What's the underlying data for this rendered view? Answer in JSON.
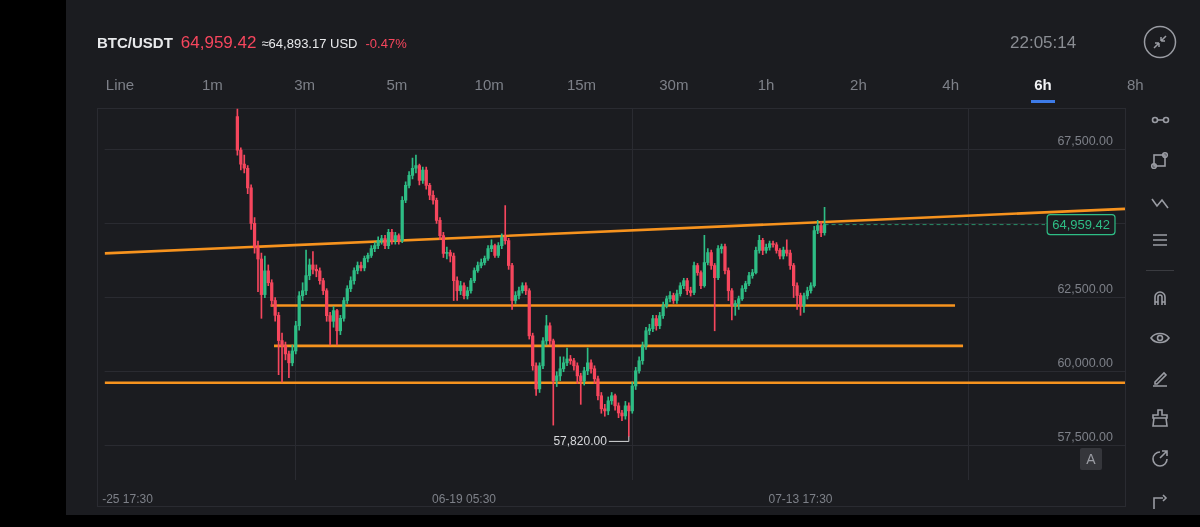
{
  "chart_data": {
    "type": "candlestick",
    "title": "BTC/USDT",
    "annotations": [
      "64,959.42",
      "≈64,893.17 USD",
      "-0.47%",
      "22:05:14",
      "Line",
      "1m",
      "3m",
      "5m",
      "10m",
      "15m",
      "30m",
      "1h",
      "2h",
      "4h",
      "6h",
      "8h",
      "A",
      {
        "text": "57,820.00",
        "x": "--07-01T05:30",
        "y": 57820
      }
    ],
    "colors": [
      "#f6465d",
      "#f6465d",
      "#f6465d",
      "#f6465d",
      "#f6465d",
      "#f6465d",
      "#f6465d",
      "#f6465d",
      "#2ebd85",
      "#f6465d",
      "#f6465d",
      "#f6465d",
      "#f6465d",
      "#f6465d",
      "#f6465d",
      "#f6465d",
      "#2ebd85",
      "#2ebd85",
      "#2ebd85",
      "#2ebd85",
      "#2ebd85",
      "#2ebd85",
      "#f6465d",
      "#f6465d",
      "#f6465d",
      "#f6465d",
      "#f6465d",
      "#f6465d",
      "#2ebd85",
      "#f6465d",
      "#2ebd85",
      "#2ebd85",
      "#2ebd85",
      "#2ebd85",
      "#2ebd85",
      "#2ebd85",
      "#f6465d",
      "#2ebd85",
      "#2ebd85",
      "#2ebd85",
      "#2ebd85",
      "#2ebd85",
      "#2ebd85",
      "#f6465d",
      "#2ebd85",
      "#f6465d",
      "#2ebd85",
      "#f6465d",
      "#2ebd85",
      "#2ebd85",
      "#2ebd85",
      "#2ebd85",
      "#2ebd85",
      "#f6465d",
      "#2ebd85",
      "#f6465d",
      "#f6465d",
      "#f6465d",
      "#f6465d",
      "#f6465d",
      "#f6465d",
      "#2ebd85",
      "#f6465d",
      "#f6465d",
      "#f6465d",
      "#2ebd85",
      "#f6465d",
      "#2ebd85",
      "#2ebd85",
      "#2ebd85",
      "#2ebd85",
      "#2ebd85",
      "#2ebd85",
      "#2ebd85",
      "#2ebd85",
      "#f6465d",
      "#2ebd85",
      "#2ebd85",
      "#f6465d",
      "#f6465d",
      "#f6465d",
      "#2ebd85",
      "#2ebd85",
      "#2ebd85",
      "#f6465d",
      "#f6465d",
      "#f6465d",
      "#f6465d",
      "#2ebd85",
      "#2ebd85",
      "#2ebd85",
      "#f6465d",
      "#f6465d",
      "#2ebd85",
      "#2ebd85",
      "#2ebd85",
      "#2ebd85",
      "#f6465d",
      "#f6465d",
      "#f6465d",
      "#f6465d",
      "#2ebd85",
      "#2ebd85",
      "#f6465d",
      "#f6465d",
      "#f6465d",
      "#f6465d",
      "#f6465d",
      "#2ebd85",
      "#2ebd85",
      "#f6465d",
      "#f6465d",
      "#f6465d",
      "#2ebd85",
      "#f6465d",
      "#2ebd85",
      "#2ebd85",
      "#2ebd85",
      "#2ebd85",
      "#2ebd85",
      "#2ebd85",
      "#2ebd85",
      "#f6465d",
      "#2ebd85",
      "#2ebd85",
      "#2ebd85",
      "#2ebd85",
      "#f6465d",
      "#2ebd85",
      "#2ebd85",
      "#2ebd85",
      "#f6465d",
      "#f6465d",
      "#2ebd85",
      "#f6465d",
      "#f6465d",
      "#2ebd85",
      "#2ebd85",
      "#f6465d",
      "#f6465d",
      "#2ebd85",
      "#2ebd85",
      "#f6465d",
      "#f6465d",
      "#f6465d",
      "#2ebd85",
      "#2ebd85",
      "#2ebd85",
      "#2ebd85",
      "#2ebd85",
      "#2ebd85",
      "#2ebd85",
      "#2ebd85",
      "#f6465d",
      "#2ebd85",
      "#2ebd85",
      "#f6465d",
      "#f6465d",
      "#f6465d",
      "#2ebd85",
      "#f6465d",
      "#f6465d",
      "#f6465d",
      "#f6465d",
      "#f6465d",
      "#2ebd85",
      "#2ebd85",
      "#2ebd85",
      "#2ebd85",
      "#2ebd85",
      "#f6465d",
      "#2ebd85"
    ],
    "x": [
      "--06-02T17:30",
      "--06-02T23:30",
      "--06-03T05:30",
      "--06-03T11:30",
      "--06-03T17:30",
      "--06-03T23:30",
      "--06-04T05:30",
      "--06-04T11:30",
      "--06-04T17:30",
      "--06-04T23:30",
      "--06-05T05:30",
      "--06-05T11:30",
      "--06-05T17:30",
      "--06-05T23:30",
      "--06-06T05:30",
      "--06-06T11:30",
      "--06-06T17:30",
      "--06-06T23:30",
      "--06-07T05:30",
      "--06-07T11:30",
      "--06-07T17:30",
      "--06-07T23:30",
      "--06-08T05:30",
      "--06-08T11:30",
      "--06-08T17:30",
      "--06-08T23:30",
      "--06-09T05:30",
      "--06-09T11:30",
      "--06-09T17:30",
      "--06-09T23:30",
      "--06-10T05:30",
      "--06-10T11:30",
      "--06-10T17:30",
      "--06-10T23:30",
      "--06-11T05:30",
      "--06-11T11:30",
      "--06-11T17:30",
      "--06-11T23:30",
      "--06-12T05:30",
      "--06-12T11:30",
      "--06-12T17:30",
      "--06-12T23:30",
      "--06-13T05:30",
      "--06-13T11:30",
      "--06-13T17:30",
      "--06-13T23:30",
      "--06-14T05:30",
      "--06-14T11:30",
      "--06-14T17:30",
      "--06-14T23:30",
      "--06-15T05:30",
      "--06-15T11:30",
      "--06-15T17:30",
      "--06-15T23:30",
      "--06-16T05:30",
      "--06-16T11:30",
      "--06-16T17:30",
      "--06-16T23:30",
      "--06-17T05:30",
      "--06-17T11:30",
      "--06-17T17:30",
      "--06-17T23:30",
      "--06-18T05:30",
      "--06-18T11:30",
      "--06-18T17:30",
      "--06-18T23:30",
      "--06-19T05:30",
      "--06-19T11:30",
      "--06-19T17:30",
      "--06-19T23:30",
      "--06-20T05:30",
      "--06-20T11:30",
      "--06-20T17:30",
      "--06-20T23:30",
      "--06-21T05:30",
      "--06-21T11:30",
      "--06-21T17:30",
      "--06-21T23:30",
      "--06-22T05:30",
      "--06-22T11:30",
      "--06-22T17:30",
      "--06-22T23:30",
      "--06-23T05:30",
      "--06-23T11:30",
      "--06-23T17:30",
      "--06-23T23:30",
      "--06-24T05:30",
      "--06-24T11:30",
      "--06-24T17:30",
      "--06-24T23:30",
      "--06-25T05:30",
      "--06-25T11:30",
      "--06-25T17:30",
      "--06-25T23:30",
      "--06-26T05:30",
      "--06-26T11:30",
      "--06-26T17:30",
      "--06-26T23:30",
      "--06-27T05:30",
      "--06-27T11:30",
      "--06-27T17:30",
      "--06-27T23:30",
      "--06-28T05:30",
      "--06-28T11:30",
      "--06-28T17:30",
      "--06-28T23:30",
      "--06-29T05:30",
      "--06-29T11:30",
      "--06-29T17:30",
      "--06-29T23:30",
      "--06-30T05:30",
      "--06-30T11:30",
      "--06-30T17:30",
      "--06-30T23:30",
      "--07-01T05:30",
      "--07-01T11:30",
      "--07-01T17:30",
      "--07-01T23:30",
      "--07-02T05:30",
      "--07-02T11:30",
      "--07-02T17:30",
      "--07-02T23:30",
      "--07-03T05:30",
      "--07-03T11:30",
      "--07-03T17:30",
      "--07-03T23:30",
      "--07-04T05:30",
      "--07-04T11:30",
      "--07-04T17:30",
      "--07-04T23:30",
      "--07-05T05:30",
      "--07-05T11:30",
      "--07-05T17:30",
      "--07-05T23:30",
      "--07-06T05:30",
      "--07-06T11:30",
      "--07-06T17:30",
      "--07-06T23:30",
      "--07-07T05:30",
      "--07-07T11:30",
      "--07-07T17:30",
      "--07-07T23:30",
      "--07-08T05:30",
      "--07-08T11:30",
      "--07-08T17:30",
      "--07-08T23:30",
      "--07-09T05:30",
      "--07-09T11:30",
      "--07-09T17:30",
      "--07-09T23:30",
      "--07-10T05:30",
      "--07-10T11:30",
      "--07-10T17:30",
      "--07-10T23:30",
      "--07-11T05:30",
      "--07-11T11:30",
      "--07-11T17:30",
      "--07-11T23:30",
      "--07-12T05:30",
      "--07-12T11:30",
      "--07-12T17:30",
      "--07-12T23:30",
      "--07-13T05:30",
      "--07-13T11:30",
      "--07-13T17:30",
      "--07-13T23:30",
      "--07-14T05:30",
      "--07-14T11:30",
      "--07-14T17:30",
      "--07-14T23:30",
      "--07-15T05:30",
      "--07-15T11:30"
    ],
    "ohlc": [
      [
        68600,
        68850,
        67300,
        67470
      ],
      [
        67470,
        67550,
        66800,
        67000
      ],
      [
        67000,
        67300,
        66700,
        66860
      ],
      [
        66860,
        66950,
        66000,
        66200
      ],
      [
        66200,
        66300,
        64800,
        65000
      ],
      [
        65000,
        65200,
        64000,
        64200
      ],
      [
        64200,
        64400,
        62700,
        63800
      ],
      [
        63800,
        64000,
        61800,
        62600
      ],
      [
        62600,
        63900,
        62500,
        63400
      ],
      [
        63400,
        63600,
        62900,
        63000
      ],
      [
        63000,
        63100,
        62200,
        62400
      ],
      [
        62400,
        62500,
        61700,
        61900
      ],
      [
        61900,
        62000,
        59900,
        61050
      ],
      [
        61050,
        61300,
        59650,
        60870
      ],
      [
        60870,
        61000,
        60400,
        60600
      ],
      [
        60600,
        60700,
        59800,
        60300
      ],
      [
        60300,
        60900,
        60200,
        60700
      ],
      [
        60700,
        61700,
        60600,
        61550
      ],
      [
        61550,
        62700,
        61400,
        62560
      ],
      [
        62560,
        63000,
        62400,
        62730
      ],
      [
        62730,
        64100,
        62600,
        63240
      ],
      [
        63240,
        63800,
        63100,
        63600
      ],
      [
        63600,
        64050,
        63300,
        63450
      ],
      [
        63450,
        63600,
        63200,
        63400
      ],
      [
        63400,
        63500,
        62950,
        63070
      ],
      [
        63070,
        63150,
        62600,
        62730
      ],
      [
        62730,
        62800,
        61700,
        61890
      ],
      [
        61890,
        62000,
        60900,
        61700
      ],
      [
        61700,
        62200,
        61500,
        62060
      ],
      [
        62060,
        62100,
        60900,
        61380
      ],
      [
        61380,
        61900,
        61250,
        61800
      ],
      [
        61800,
        62500,
        61700,
        62400
      ],
      [
        62400,
        62900,
        62300,
        62800
      ],
      [
        62800,
        63200,
        62700,
        63070
      ],
      [
        63070,
        63500,
        62950,
        63410
      ],
      [
        63410,
        63700,
        63300,
        63580
      ],
      [
        63580,
        63700,
        63400,
        63500
      ],
      [
        63500,
        63900,
        63400,
        63820
      ],
      [
        63820,
        64000,
        63700,
        63920
      ],
      [
        63920,
        64250,
        63850,
        64150
      ],
      [
        64150,
        64350,
        64050,
        64250
      ],
      [
        64250,
        64550,
        64150,
        64430
      ],
      [
        64430,
        64600,
        64300,
        64490
      ],
      [
        64490,
        64600,
        64150,
        64250
      ],
      [
        64250,
        64800,
        64150,
        64700
      ],
      [
        64700,
        64800,
        64300,
        64420
      ],
      [
        64420,
        64700,
        64300,
        64590
      ],
      [
        64590,
        64650,
        64300,
        64420
      ],
      [
        64420,
        65900,
        64350,
        65780
      ],
      [
        65780,
        66400,
        65700,
        66280
      ],
      [
        66280,
        66750,
        66200,
        66620
      ],
      [
        66620,
        67200,
        66500,
        66860
      ],
      [
        66860,
        67300,
        66700,
        66950
      ],
      [
        66950,
        67000,
        66300,
        66450
      ],
      [
        66450,
        66900,
        66350,
        66800
      ],
      [
        66800,
        66900,
        66150,
        66280
      ],
      [
        66280,
        66350,
        65800,
        65950
      ],
      [
        65950,
        66100,
        65650,
        65780
      ],
      [
        65780,
        65850,
        65000,
        65100
      ],
      [
        65100,
        65200,
        64450,
        64590
      ],
      [
        64590,
        64700,
        63850,
        63990
      ],
      [
        63990,
        64200,
        63800,
        64020
      ],
      [
        64020,
        64100,
        63700,
        63900
      ],
      [
        63900,
        64000,
        62400,
        63070
      ],
      [
        63070,
        63200,
        62400,
        62730
      ],
      [
        62730,
        63050,
        62600,
        62900
      ],
      [
        62900,
        63000,
        62450,
        62560
      ],
      [
        62560,
        62850,
        62450,
        62730
      ],
      [
        62730,
        63150,
        62650,
        63070
      ],
      [
        63070,
        63500,
        63000,
        63410
      ],
      [
        63410,
        63700,
        63350,
        63580
      ],
      [
        63580,
        63800,
        63500,
        63680
      ],
      [
        63680,
        63900,
        63600,
        63820
      ],
      [
        63820,
        64250,
        63750,
        64150
      ],
      [
        64150,
        64450,
        64050,
        64250
      ],
      [
        64250,
        64300,
        63850,
        63920
      ],
      [
        63920,
        64350,
        63850,
        64250
      ],
      [
        64250,
        64650,
        64150,
        64530
      ],
      [
        64530,
        65600,
        64300,
        64420
      ],
      [
        64420,
        64500,
        63450,
        63580
      ],
      [
        63580,
        63650,
        62100,
        62400
      ],
      [
        62400,
        62700,
        62300,
        62570
      ],
      [
        62570,
        62850,
        62450,
        62730
      ],
      [
        62730,
        63000,
        62650,
        62900
      ],
      [
        62900,
        63000,
        62600,
        62730
      ],
      [
        62730,
        62800,
        61100,
        61210
      ],
      [
        61210,
        61300,
        60050,
        60200
      ],
      [
        60200,
        60300,
        59200,
        59420
      ],
      [
        59420,
        60300,
        59300,
        60200
      ],
      [
        60200,
        61150,
        60100,
        61040
      ],
      [
        61040,
        61900,
        60900,
        61550
      ],
      [
        61550,
        61650,
        60900,
        61040
      ],
      [
        61040,
        61100,
        58200,
        59700
      ],
      [
        59700,
        60000,
        59500,
        59860
      ],
      [
        59860,
        60500,
        59700,
        60100
      ],
      [
        60100,
        60500,
        60000,
        60300
      ],
      [
        60300,
        60800,
        60200,
        60430
      ],
      [
        60430,
        60550,
        60250,
        60370
      ],
      [
        60370,
        60450,
        60050,
        60200
      ],
      [
        60200,
        60300,
        59600,
        59860
      ],
      [
        59860,
        59950,
        58900,
        59690
      ],
      [
        59690,
        60150,
        59550,
        60030
      ],
      [
        60030,
        60800,
        59900,
        60300
      ],
      [
        60300,
        60400,
        59950,
        60100
      ],
      [
        60100,
        60200,
        59600,
        59760
      ],
      [
        59760,
        59850,
        59050,
        59190
      ],
      [
        59190,
        59300,
        58600,
        58750
      ],
      [
        58750,
        58900,
        58500,
        58680
      ],
      [
        58680,
        59150,
        58550,
        59020
      ],
      [
        59020,
        59300,
        58900,
        59190
      ],
      [
        59190,
        59250,
        58700,
        58850
      ],
      [
        58850,
        58950,
        58450,
        58610
      ],
      [
        58610,
        58700,
        58350,
        58510
      ],
      [
        58510,
        59000,
        58400,
        58850
      ],
      [
        58850,
        58950,
        57820,
        58680
      ],
      [
        58680,
        59650,
        58600,
        59520
      ],
      [
        59520,
        60150,
        59400,
        60030
      ],
      [
        60030,
        60500,
        59950,
        60370
      ],
      [
        60370,
        61000,
        60250,
        60870
      ],
      [
        60870,
        61500,
        60750,
        61380
      ],
      [
        61380,
        61600,
        61250,
        61450
      ],
      [
        61450,
        61900,
        61350,
        61790
      ],
      [
        61790,
        61900,
        61400,
        61550
      ],
      [
        61550,
        62000,
        61450,
        61890
      ],
      [
        61890,
        62350,
        61800,
        62230
      ],
      [
        62230,
        62550,
        62150,
        62460
      ],
      [
        62460,
        62700,
        62350,
        62570
      ],
      [
        62570,
        62650,
        62300,
        62400
      ],
      [
        62400,
        62750,
        62300,
        62630
      ],
      [
        62630,
        63000,
        62550,
        62900
      ],
      [
        62900,
        63150,
        62800,
        63070
      ],
      [
        63070,
        63150,
        62600,
        62730
      ],
      [
        62730,
        62850,
        62550,
        62670
      ],
      [
        62670,
        63700,
        62600,
        63580
      ],
      [
        63580,
        63650,
        63250,
        63340
      ],
      [
        63340,
        63400,
        62800,
        62900
      ],
      [
        62900,
        64600,
        62850,
        63680
      ],
      [
        63680,
        64150,
        63600,
        64020
      ],
      [
        64020,
        64100,
        63450,
        63580
      ],
      [
        63580,
        63650,
        61380,
        63170
      ],
      [
        63170,
        64250,
        63100,
        64150
      ],
      [
        64150,
        64300,
        64000,
        64220
      ],
      [
        64220,
        64300,
        63300,
        63410
      ],
      [
        63410,
        63500,
        62400,
        62730
      ],
      [
        62730,
        62800,
        61750,
        62230
      ],
      [
        62230,
        62400,
        61900,
        62300
      ],
      [
        62300,
        62550,
        62100,
        62460
      ],
      [
        62460,
        62900,
        62400,
        62800
      ],
      [
        62800,
        63050,
        62700,
        62970
      ],
      [
        62970,
        63350,
        62900,
        63240
      ],
      [
        63240,
        63450,
        63150,
        63340
      ],
      [
        63340,
        64200,
        63300,
        64090
      ],
      [
        64090,
        64600,
        64000,
        64430
      ],
      [
        64430,
        64500,
        63950,
        64090
      ],
      [
        64090,
        64300,
        64000,
        64190
      ],
      [
        64190,
        64400,
        64100,
        64320
      ],
      [
        64320,
        64400,
        64200,
        64280
      ],
      [
        64280,
        64350,
        64000,
        64090
      ],
      [
        64090,
        64150,
        63800,
        63900
      ],
      [
        63900,
        64200,
        63800,
        64100
      ],
      [
        64100,
        64450,
        63900,
        64000
      ],
      [
        64000,
        64100,
        63450,
        63580
      ],
      [
        63580,
        63650,
        62500,
        62900
      ],
      [
        62900,
        63000,
        62100,
        62570
      ],
      [
        62570,
        62650,
        61900,
        62230
      ],
      [
        62230,
        62650,
        62000,
        62560
      ],
      [
        62560,
        62850,
        62450,
        62730
      ],
      [
        62730,
        63000,
        62650,
        62900
      ],
      [
        62900,
        64900,
        62850,
        64760
      ],
      [
        64760,
        65100,
        64650,
        64930
      ],
      [
        64930,
        65050,
        64550,
        64690
      ],
      [
        64690,
        65540,
        64600,
        64959.42
      ]
    ],
    "series": [
      {
        "type": "line",
        "color": "#f7931e",
        "x": [
          "--05-24T01:30",
          "--08-06T08:30"
        ],
        "values": [
          63990,
          65490
        ]
      },
      {
        "type": "line",
        "color": "#f7931e",
        "x": [
          "--06-05T03:30",
          "--07-24T23:30"
        ],
        "values": [
          62230,
          62230
        ]
      },
      {
        "type": "line",
        "color": "#f7931e",
        "x": [
          "--06-05T09:30",
          "--07-25T13:30"
        ],
        "values": [
          60870,
          60870
        ]
      },
      {
        "type": "line",
        "color": "#f7931e",
        "x": [
          "--05-24T01:30",
          "--08-06T08:30"
        ],
        "values": [
          59630,
          59630
        ]
      }
    ],
    "ref_lines": [
      {
        "axis": "y",
        "value": 64959.42,
        "label": "64,959.42",
        "color": "#2ebd85",
        "line_style": "dashed"
      }
    ],
    "xlim": [
      "--05-24T01:30",
      "--08-06T08:30"
    ],
    "xticks": [
      {
        "value": "--05-25T17:30",
        "label": "-25 17:30"
      },
      {
        "value": "--06-19T05:30",
        "label": "06-19 05:30"
      },
      {
        "value": "--07-13T17:30",
        "label": "07-13 17:30"
      }
    ],
    "ylim": [
      56350,
      68890
    ],
    "yticks": [
      {
        "value": 57500,
        "label": "57,500.00"
      },
      {
        "value": 60000,
        "label": "60,000.00"
      },
      {
        "value": 62500,
        "label": "62,500.00"
      },
      {
        "value": 65000,
        "label": null
      },
      {
        "value": 67500,
        "label": "67,500.00"
      }
    ],
    "grid": true,
    "legend": false
  }
}
